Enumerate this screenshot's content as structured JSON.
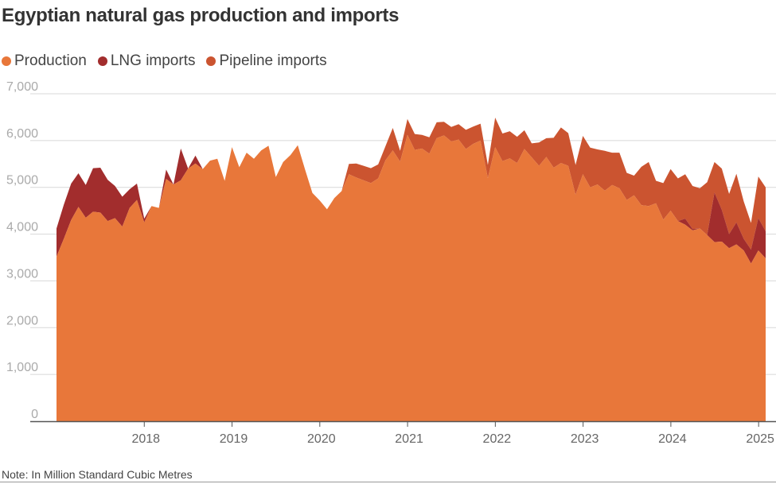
{
  "title": "Egyptian natural gas production and imports",
  "note": "Note: In Million Standard Cubic Metres",
  "colors": {
    "production": "#E8773A",
    "lng": "#A22D2D",
    "pipeline": "#CB5430",
    "grid": "#d8d8d8",
    "axis": "#555555"
  },
  "chart_data": {
    "type": "area",
    "stacked": true,
    "x_unit": "decimal year",
    "x_start": 2017.0,
    "x_step": 0.0833,
    "ylim": [
      0,
      7000
    ],
    "yticks": [
      0,
      1000,
      2000,
      3000,
      4000,
      5000,
      6000,
      7000
    ],
    "ytick_labels": [
      "0",
      "1,000",
      "2,000",
      "3,000",
      "4,000",
      "5,000",
      "6,000",
      "7,000"
    ],
    "xticks": [
      2018,
      2019,
      2020,
      2021,
      2022,
      2023,
      2024,
      2025
    ],
    "xtick_labels": [
      "2018",
      "2019",
      "2020",
      "2021",
      "2022",
      "2023",
      "2024",
      "2025"
    ],
    "grid": true,
    "legend_position": "top-left",
    "series": [
      {
        "name": "Production",
        "key": "production",
        "values": [
          3520,
          3900,
          4300,
          4580,
          4350,
          4480,
          4460,
          4280,
          4340,
          4160,
          4560,
          4730,
          4250,
          4600,
          4560,
          5180,
          5060,
          5150,
          5400,
          5510,
          5390,
          5570,
          5610,
          5140,
          5860,
          5430,
          5740,
          5610,
          5790,
          5890,
          5220,
          5540,
          5690,
          5900,
          5380,
          4880,
          4720,
          4530,
          4770,
          4920,
          5280,
          5210,
          5150,
          5090,
          5190,
          5580,
          5790,
          5550,
          6120,
          5800,
          5830,
          5720,
          6050,
          6110,
          5980,
          6020,
          5820,
          5930,
          6000,
          5200,
          5860,
          5560,
          5620,
          5520,
          5820,
          5640,
          5460,
          5650,
          5420,
          5520,
          5460,
          4840,
          5280,
          5000,
          5060,
          4930,
          5050,
          4980,
          4730,
          4830,
          4620,
          4600,
          4660,
          4310,
          4500,
          4280,
          4200,
          4080,
          4120,
          3980,
          3830,
          3840,
          3700,
          3780,
          3650,
          3370,
          3650,
          3480
        ]
      },
      {
        "name": "LNG imports",
        "key": "lng",
        "values": [
          600,
          730,
          780,
          720,
          700,
          930,
          960,
          880,
          690,
          640,
          400,
          350,
          80,
          0,
          0,
          200,
          0,
          680,
          0,
          170,
          0,
          0,
          0,
          0,
          0,
          0,
          0,
          0,
          0,
          0,
          0,
          0,
          0,
          0,
          0,
          0,
          0,
          0,
          0,
          0,
          0,
          0,
          0,
          0,
          0,
          0,
          0,
          0,
          0,
          0,
          0,
          0,
          0,
          0,
          0,
          0,
          0,
          0,
          0,
          0,
          0,
          0,
          0,
          0,
          0,
          0,
          0,
          0,
          0,
          0,
          0,
          0,
          0,
          0,
          0,
          0,
          0,
          0,
          0,
          0,
          0,
          0,
          0,
          0,
          0,
          0,
          130,
          30,
          0,
          0,
          1060,
          680,
          300,
          470,
          250,
          300,
          690,
          580
        ]
      },
      {
        "name": "Pipeline imports",
        "key": "pipeline",
        "values": [
          0,
          0,
          0,
          0,
          0,
          0,
          0,
          0,
          0,
          0,
          0,
          0,
          0,
          0,
          0,
          0,
          0,
          0,
          0,
          0,
          0,
          0,
          0,
          0,
          0,
          0,
          0,
          0,
          0,
          0,
          0,
          0,
          0,
          0,
          0,
          0,
          0,
          0,
          0,
          0,
          220,
          300,
          310,
          320,
          300,
          300,
          480,
          230,
          340,
          340,
          290,
          350,
          340,
          290,
          310,
          330,
          410,
          370,
          360,
          280,
          630,
          590,
          580,
          560,
          400,
          300,
          500,
          400,
          640,
          760,
          700,
          640,
          820,
          850,
          750,
          850,
          690,
          760,
          580,
          420,
          820,
          940,
          480,
          780,
          890,
          910,
          950,
          920,
          860,
          1130,
          650,
          880,
          860,
          1040,
          800,
          570,
          890,
          940
        ]
      }
    ]
  }
}
